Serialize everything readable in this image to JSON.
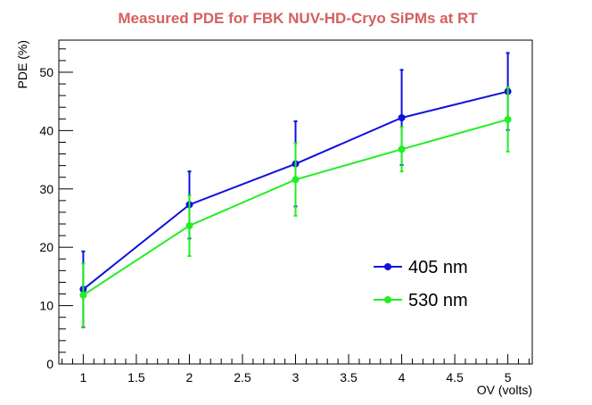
{
  "chart_data": {
    "type": "line",
    "title": "Measured PDE for FBK NUV-HD-Cryo SiPMs at RT",
    "xlabel": "OV (volts)",
    "ylabel": "PDE (%)",
    "xlim": [
      0.77,
      5.23
    ],
    "ylim": [
      0,
      55.5
    ],
    "xticks": [
      1,
      1.5,
      2,
      2.5,
      3,
      3.5,
      4,
      4.5,
      5
    ],
    "xtick_labels": [
      "1",
      "1.5",
      "2",
      "2.5",
      "3",
      "3.5",
      "4",
      "4.5",
      "5"
    ],
    "yticks": [
      0,
      10,
      20,
      30,
      40,
      50
    ],
    "ytick_labels": [
      "0",
      "10",
      "20",
      "30",
      "40",
      "50"
    ],
    "grid": false,
    "legend_position": "lower-right",
    "series": [
      {
        "name": "405 nm",
        "color": "#1010e0",
        "x": [
          1,
          2,
          3,
          4,
          5
        ],
        "y": [
          12.8,
          27.3,
          34.3,
          42.2,
          46.7
        ],
        "err_low": [
          6.5,
          5.8,
          7.3,
          8.1,
          6.6
        ],
        "err_high": [
          6.5,
          5.7,
          7.3,
          8.2,
          6.6
        ]
      },
      {
        "name": "530 nm",
        "color": "#22ee22",
        "x": [
          1,
          2,
          3,
          4,
          5
        ],
        "y": [
          11.8,
          23.7,
          31.6,
          36.8,
          41.9
        ],
        "err_low": [
          5.4,
          5.2,
          6.2,
          3.8,
          5.5
        ],
        "err_high": [
          5.4,
          5.2,
          6.2,
          3.8,
          5.5
        ]
      }
    ]
  }
}
